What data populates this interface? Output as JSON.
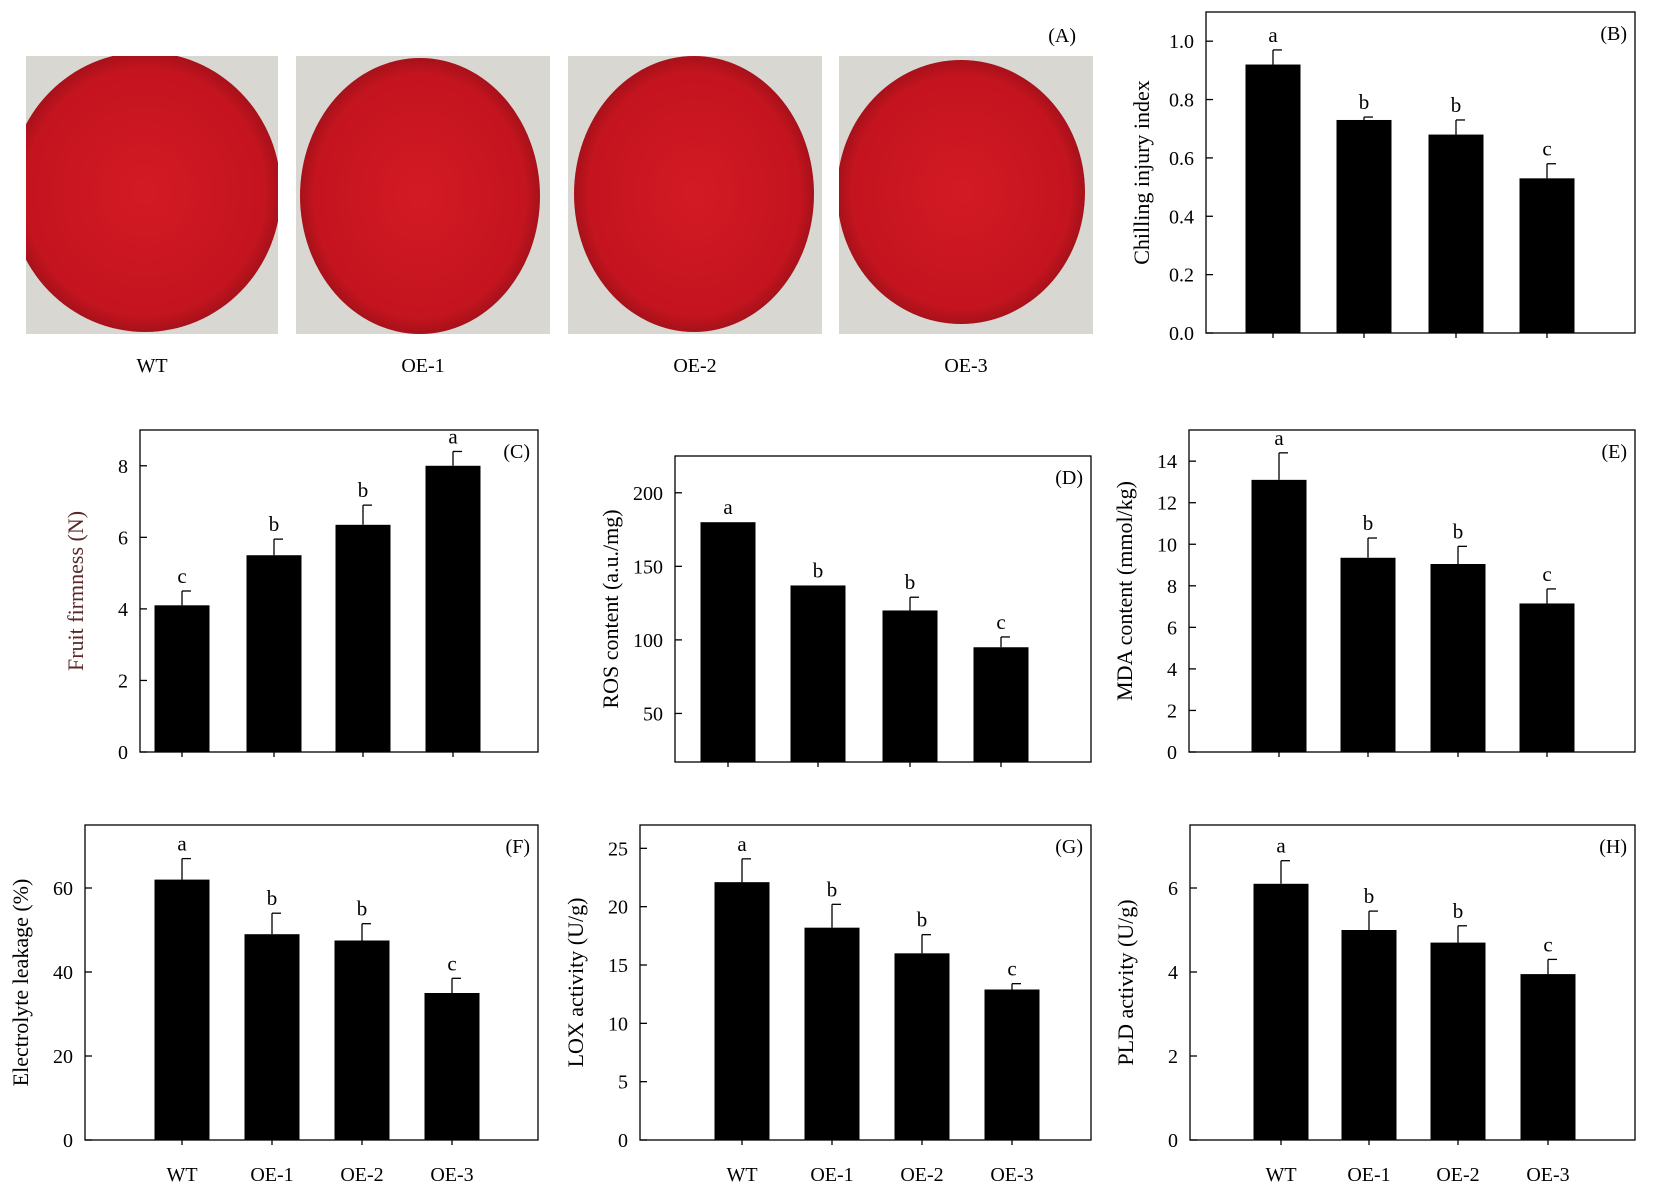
{
  "photo_panel": {
    "letter": "(A)",
    "labels": [
      "WT",
      "OE-1",
      "OE-2",
      "OE-3"
    ],
    "fruit_color": "#c4141f",
    "background_color": "#d9d7d2"
  },
  "bar_color": "#000000",
  "chart_data": [
    {
      "panel": "B",
      "letter": "(B)",
      "type": "bar",
      "categories": [
        "WT",
        "OE-1",
        "OE-2",
        "OE-3"
      ],
      "show_category_labels": false,
      "values": [
        0.92,
        0.73,
        0.68,
        0.53
      ],
      "errors": [
        0.05,
        0.01,
        0.05,
        0.05
      ],
      "significance": [
        "a",
        "b",
        "b",
        "c"
      ],
      "ylabel": "Chilling injury index",
      "ylabel_color": "#000000",
      "ylim": [
        0,
        1.1
      ],
      "yticks": [
        0,
        0.2,
        0.4,
        0.6,
        0.8,
        1.0
      ],
      "ytick_labels": [
        "0.0",
        "0.2",
        "0.4",
        "0.6",
        "0.8",
        "1.0"
      ],
      "grid": false
    },
    {
      "panel": "C",
      "letter": "(C)",
      "type": "bar",
      "categories": [
        "WT",
        "OE-1",
        "OE-2",
        "OE-3"
      ],
      "show_category_labels": false,
      "values": [
        4.1,
        5.5,
        6.35,
        8.0
      ],
      "errors": [
        0.4,
        0.45,
        0.55,
        0.4
      ],
      "significance": [
        "c",
        "b",
        "b",
        "a"
      ],
      "ylabel": "Fruit firmness (N)",
      "ylabel_color": "#5a2a2a",
      "ylim": [
        0,
        9
      ],
      "yticks": [
        0,
        2,
        4,
        6,
        8
      ],
      "ytick_labels": [
        "0",
        "2",
        "4",
        "6",
        "8"
      ],
      "grid": false
    },
    {
      "panel": "D",
      "letter": "(D)",
      "type": "bar",
      "categories": [
        "WT",
        "OE-1",
        "OE-2",
        "OE-3"
      ],
      "show_category_labels": false,
      "values": [
        180,
        137,
        120,
        95
      ],
      "errors": [
        0,
        0,
        9,
        7
      ],
      "significance": [
        "a",
        "b",
        "b",
        "c"
      ],
      "ylabel": "ROS content (a.u./mg)",
      "ylabel_color": "#000000",
      "ylim": [
        17,
        225
      ],
      "yticks": [
        50,
        100,
        150,
        200
      ],
      "ytick_labels": [
        "50",
        "100",
        "150",
        "200"
      ],
      "grid": false
    },
    {
      "panel": "E",
      "letter": "(E)",
      "type": "bar",
      "categories": [
        "WT",
        "OE-1",
        "OE-2",
        "OE-3"
      ],
      "show_category_labels": false,
      "values": [
        13.1,
        9.35,
        9.05,
        7.15
      ],
      "errors": [
        1.3,
        0.95,
        0.85,
        0.7
      ],
      "significance": [
        "a",
        "b",
        "b",
        "c"
      ],
      "ylabel": "MDA content (mmol/kg)",
      "ylabel_color": "#000000",
      "ylim": [
        0,
        15.5
      ],
      "yticks": [
        0,
        2,
        4,
        6,
        8,
        10,
        12,
        14
      ],
      "ytick_labels": [
        "0",
        "2",
        "4",
        "6",
        "8",
        "10",
        "12",
        "14"
      ],
      "grid": false
    },
    {
      "panel": "F",
      "letter": "(F)",
      "type": "bar",
      "categories": [
        "WT",
        "OE-1",
        "OE-2",
        "OE-3"
      ],
      "show_category_labels": true,
      "values": [
        62,
        49,
        47.5,
        35
      ],
      "errors": [
        5,
        5,
        4,
        3.5
      ],
      "significance": [
        "a",
        "b",
        "b",
        "c"
      ],
      "ylabel": "Electrolyte leakage (%)",
      "ylabel_color": "#000000",
      "ylim": [
        0,
        75
      ],
      "yticks": [
        0,
        20,
        40,
        60
      ],
      "ytick_labels": [
        "0",
        "20",
        "40",
        "60"
      ],
      "grid": false
    },
    {
      "panel": "G",
      "letter": "(G)",
      "type": "bar",
      "categories": [
        "WT",
        "OE-1",
        "OE-2",
        "OE-3"
      ],
      "show_category_labels": true,
      "values": [
        22.1,
        18.2,
        16,
        12.9
      ],
      "errors": [
        2.0,
        2.0,
        1.6,
        0.5
      ],
      "significance": [
        "a",
        "b",
        "b",
        "c"
      ],
      "ylabel": "LOX activity (U/g)",
      "ylabel_color": "#000000",
      "ylim": [
        0,
        27
      ],
      "yticks": [
        0,
        5,
        10,
        15,
        20,
        25
      ],
      "ytick_labels": [
        "0",
        "5",
        "10",
        "15",
        "20",
        "25"
      ],
      "grid": false
    },
    {
      "panel": "H",
      "letter": "(H)",
      "type": "bar",
      "categories": [
        "WT",
        "OE-1",
        "OE-2",
        "OE-3"
      ],
      "show_category_labels": true,
      "values": [
        6.1,
        5.0,
        4.7,
        3.95
      ],
      "errors": [
        0.55,
        0.45,
        0.4,
        0.35
      ],
      "significance": [
        "a",
        "b",
        "b",
        "c"
      ],
      "ylabel": "PLD activity (U/g)",
      "ylabel_color": "#000000",
      "ylim": [
        0,
        7.5
      ],
      "yticks": [
        0,
        2,
        4,
        6
      ],
      "ytick_labels": [
        "0",
        "2",
        "4",
        "6"
      ],
      "grid": false
    }
  ]
}
